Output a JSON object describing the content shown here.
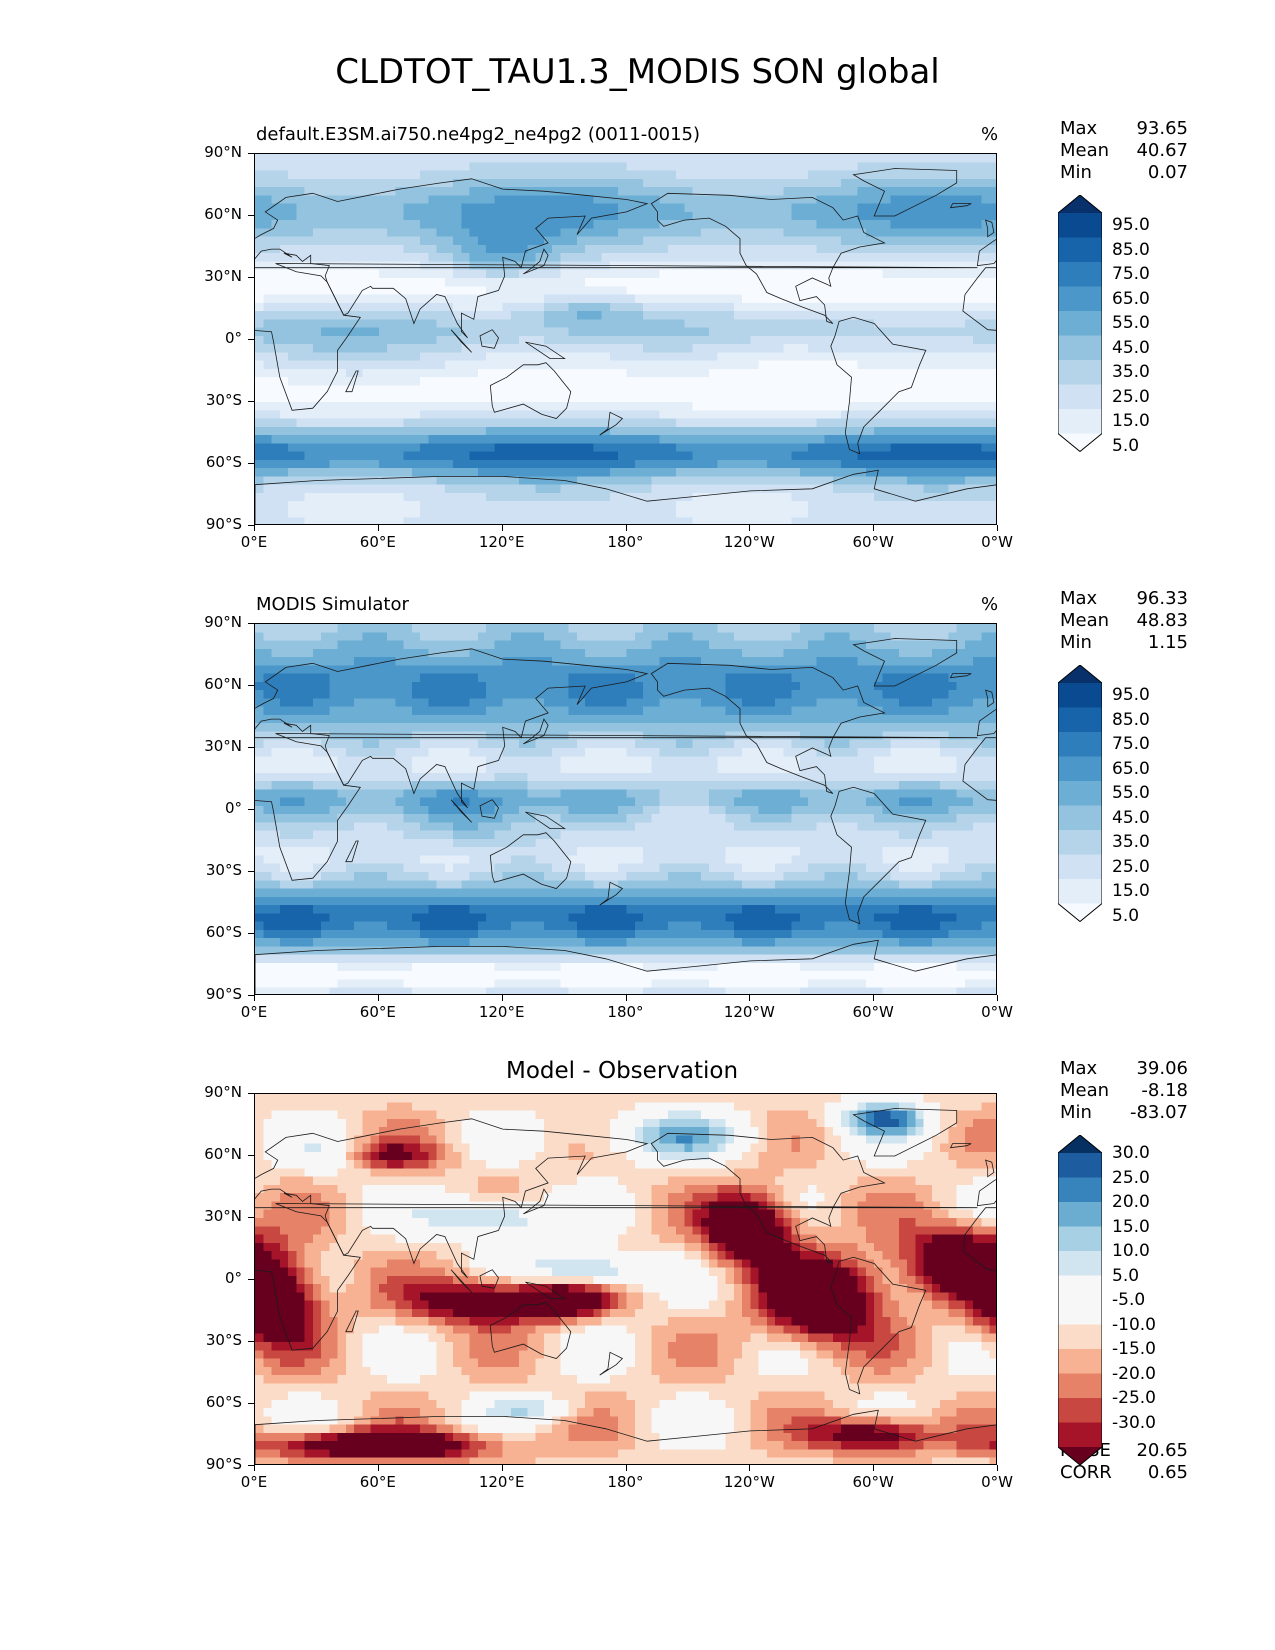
{
  "figure_title": "CLDTOT_TAU1.3_MODIS SON global",
  "axes": {
    "lat_ticks": [
      "90°N",
      "60°N",
      "30°N",
      "0°",
      "30°S",
      "60°S",
      "90°S"
    ],
    "lon_ticks": [
      "0°E",
      "60°E",
      "120°E",
      "180°",
      "120°W",
      "60°W",
      "0°W"
    ]
  },
  "colors": {
    "cloud_scale": [
      "#f7fbff",
      "#e3eef9",
      "#cfe1f2",
      "#b5d4e9",
      "#93c3df",
      "#6daed5",
      "#4b97c9",
      "#2f7ebc",
      "#1864aa",
      "#0a4a90",
      "#08306b"
    ],
    "diff_scale": [
      "#67001f",
      "#a51429",
      "#c94741",
      "#e58267",
      "#f6b293",
      "#fbdcc9",
      "#f7f7f7",
      "#f7f7f7",
      "#d1e5f0",
      "#a7d0e4",
      "#6bacd1",
      "#3783bb",
      "#1c5c9f",
      "#053061"
    ]
  },
  "panels": [
    {
      "title": "default.E3SM.ai750.ne4pg2_ne4pg2 (0011-0015)",
      "unit": "%",
      "stats": [
        {
          "label": "Max",
          "value": "93.65"
        },
        {
          "label": "Mean",
          "value": "40.67"
        },
        {
          "label": "Min",
          "value": "0.07"
        }
      ],
      "colorbar_labels": [
        "95.0",
        "85.0",
        "75.0",
        "65.0",
        "55.0",
        "45.0",
        "35.0",
        "25.0",
        "15.0",
        "5.0"
      ]
    },
    {
      "title": "MODIS Simulator",
      "unit": "%",
      "stats": [
        {
          "label": "Max",
          "value": "96.33"
        },
        {
          "label": "Mean",
          "value": "48.83"
        },
        {
          "label": "Min",
          "value": "1.15"
        }
      ],
      "colorbar_labels": [
        "95.0",
        "85.0",
        "75.0",
        "65.0",
        "55.0",
        "45.0",
        "35.0",
        "25.0",
        "15.0",
        "5.0"
      ]
    },
    {
      "title": "Model - Observation",
      "stats": [
        {
          "label": "Max",
          "value": "39.06"
        },
        {
          "label": "Mean",
          "value": "-8.18"
        },
        {
          "label": "Min",
          "value": "-83.07"
        }
      ],
      "colorbar_labels": [
        "30.0",
        "25.0",
        "20.0",
        "15.0",
        "10.0",
        "5.0",
        "-5.0",
        "-10.0",
        "-15.0",
        "-20.0",
        "-25.0",
        "-30.0"
      ],
      "metrics": [
        {
          "label": "RMSE",
          "value": "20.65"
        },
        {
          "label": "CORR",
          "value": "0.65"
        }
      ]
    }
  ]
}
